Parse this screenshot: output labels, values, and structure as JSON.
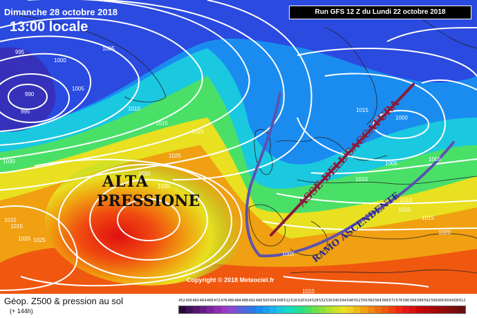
{
  "header": {
    "date": "Dimanche 28 octobre 2018",
    "time": "13:00 locale",
    "run": "Run GFS 12 Z du Lundi 22 octobre 2018"
  },
  "footer": {
    "copyright": "Copyright © 2018 Meteociel.fr",
    "field_title": "Géop. Z500 & pression au sol",
    "field_subtitle": "(+ 144h)"
  },
  "annotations": {
    "high_line1": "ALTA",
    "high_line2": "PRESSIONE",
    "trough_axis": "ASSE DELL'SACCATURA",
    "ascending_branch": "RAMO ASCENDENTE"
  },
  "isobars": {
    "labels": [
      "995",
      "1000",
      "1005",
      "990",
      "995",
      "1005",
      "1010",
      "1015",
      "1020",
      "1025",
      "1030",
      "1035",
      "1030",
      "1015",
      "1015",
      "1020",
      "1025",
      "1015",
      "1000",
      "1005",
      "1010",
      "1010",
      "1005",
      "1010",
      "1015",
      "1020",
      "1005",
      "1010"
    ]
  },
  "colors": {
    "arrow_purple": "#5b52b0",
    "arrow_maroon": "#8b1a3a",
    "isobar": "#ffffff"
  },
  "legend": {
    "scale_labels": [
      "452",
      "456",
      "460",
      "464",
      "468",
      "472",
      "476",
      "480",
      "484",
      "488",
      "492",
      "496",
      "500",
      "504",
      "508",
      "512",
      "516",
      "520",
      "524",
      "528",
      "532",
      "536",
      "540",
      "544",
      "548",
      "552",
      "556",
      "560",
      "564",
      "568",
      "572",
      "576",
      "580",
      "584",
      "588",
      "592",
      "596",
      "600",
      "604",
      "608",
      "612"
    ],
    "scale_colors": [
      "#2a0a3a",
      "#3e1055",
      "#521670",
      "#661c88",
      "#7a24a0",
      "#8e2cb4",
      "#9a3ac4",
      "#8a4ad0",
      "#6a5ad8",
      "#4a6ae0",
      "#2a7ae8",
      "#1a8cf0",
      "#1a9ef0",
      "#1ab4ec",
      "#1ac8e0",
      "#1ad8c8",
      "#1ae0a8",
      "#2ae088",
      "#4ae068",
      "#6ae048",
      "#8ae038",
      "#aee030",
      "#cce028",
      "#e8e020",
      "#f0d020",
      "#f0b818",
      "#f0a010",
      "#f08810",
      "#f07010",
      "#f05810",
      "#f04010",
      "#f02810",
      "#e81818",
      "#d81010",
      "#c80808",
      "#b80808",
      "#a80808",
      "#980a0a",
      "#880c0c",
      "#780e0e",
      "#680f0f"
    ]
  }
}
